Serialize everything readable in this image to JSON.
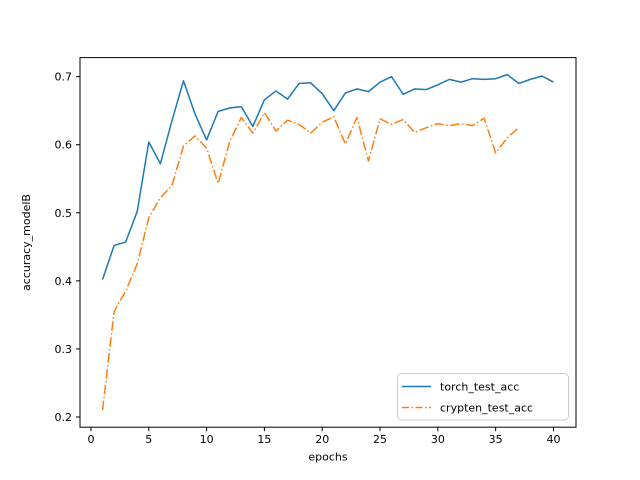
{
  "figure": {
    "background": "#ffffff"
  },
  "chart_data": {
    "type": "line",
    "title": "",
    "xlabel": "epochs",
    "ylabel": "accuracy_modelB",
    "xlim": [
      -0.95,
      41.95
    ],
    "ylim": [
      0.185,
      0.728
    ],
    "xticks": [
      0,
      5,
      10,
      15,
      20,
      25,
      30,
      35,
      40
    ],
    "yticks": [
      0.2,
      0.3,
      0.4,
      0.5,
      0.6,
      0.7
    ],
    "grid": false,
    "legend": {
      "position": "lower right",
      "entries": [
        "torch_test_acc",
        "crypten_test_acc"
      ]
    },
    "series": [
      {
        "name": "torch_test_acc",
        "color": "#1f77b4",
        "linestyle": "solid",
        "x": [
          1,
          2,
          3,
          4,
          5,
          6,
          7,
          8,
          9,
          10,
          11,
          12,
          13,
          14,
          15,
          16,
          17,
          18,
          19,
          20,
          21,
          22,
          23,
          24,
          25,
          26,
          27,
          28,
          29,
          30,
          31,
          32,
          33,
          34,
          35,
          36,
          37,
          38,
          39,
          40
        ],
        "values": [
          0.402,
          0.452,
          0.457,
          0.502,
          0.604,
          0.572,
          0.635,
          0.694,
          0.645,
          0.607,
          0.649,
          0.654,
          0.656,
          0.627,
          0.666,
          0.679,
          0.667,
          0.69,
          0.691,
          0.675,
          0.65,
          0.676,
          0.682,
          0.678,
          0.692,
          0.7,
          0.674,
          0.682,
          0.681,
          0.688,
          0.696,
          0.692,
          0.697,
          0.696,
          0.697,
          0.703,
          0.69,
          0.696,
          0.701,
          0.692
        ]
      },
      {
        "name": "crypten_test_acc",
        "color": "#ff7f0e",
        "linestyle": "dashdot",
        "x": [
          1,
          2,
          3,
          4,
          5,
          6,
          7,
          8,
          9,
          10,
          11,
          12,
          13,
          14,
          15,
          16,
          17,
          18,
          19,
          20,
          21,
          22,
          23,
          24,
          25,
          26,
          27,
          28,
          29,
          30,
          31,
          32,
          33,
          34,
          35,
          36,
          37
        ],
        "values": [
          0.21,
          0.355,
          0.385,
          0.425,
          0.493,
          0.522,
          0.54,
          0.598,
          0.613,
          0.595,
          0.543,
          0.605,
          0.64,
          0.617,
          0.647,
          0.62,
          0.636,
          0.63,
          0.617,
          0.633,
          0.641,
          0.601,
          0.64,
          0.576,
          0.638,
          0.63,
          0.637,
          0.618,
          0.625,
          0.631,
          0.628,
          0.631,
          0.628,
          0.639,
          0.588,
          0.61,
          0.625
        ]
      }
    ]
  }
}
